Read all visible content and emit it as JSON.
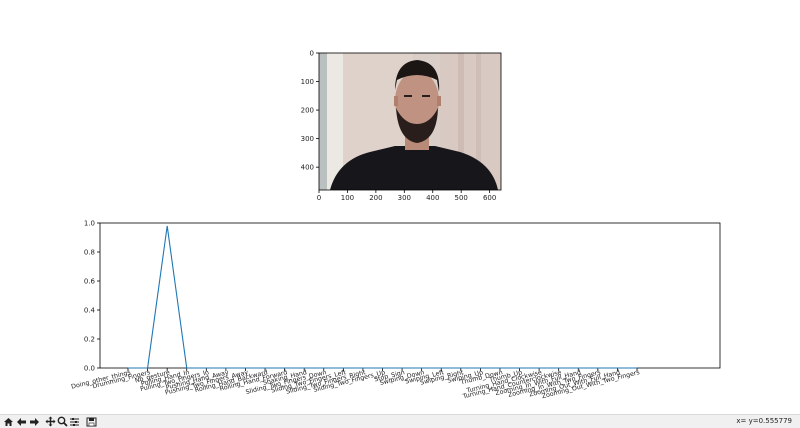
{
  "toolbar": {
    "buttons": [
      {
        "name": "home-icon"
      },
      {
        "name": "back-icon"
      },
      {
        "name": "forward-icon"
      },
      {
        "name": "pan-icon"
      },
      {
        "name": "zoom-icon"
      },
      {
        "name": "configure-subplots-icon"
      },
      {
        "name": "save-icon"
      }
    ],
    "coords_text": "x= y=0.555779"
  },
  "image_axes": {
    "xticks": [
      "0",
      "100",
      "200",
      "300",
      "400",
      "500",
      "600"
    ],
    "yticks": [
      "0",
      "100",
      "200",
      "300",
      "400"
    ],
    "xlim": [
      0,
      640
    ],
    "ylim": [
      480,
      0
    ]
  },
  "chart_data": {
    "type": "line",
    "title": "",
    "xlabel": "",
    "ylabel": "",
    "ylim": [
      0,
      1.0
    ],
    "yticks": [
      "0.0",
      "0.2",
      "0.4",
      "0.6",
      "0.8",
      "1.0"
    ],
    "grid": false,
    "line_color": "#1f77b4",
    "categories": [
      "Doing_other_things",
      "Drumming_Fingers",
      "No_gesture",
      "Pulling_Hand_In",
      "Pulling_Two_Fingers_In",
      "Pushing_Hand_Away",
      "Pushing_Two_Fingers_Away",
      "Rolling_Hand_Backward",
      "Rolling_Hand_Forward",
      "Shaking_Hand",
      "Sliding_Two_Fingers_Down",
      "Sliding_Two_Fingers_Left",
      "Sliding_Two_Fingers_Right",
      "Sliding_Two_Fingers_Up",
      "Stop_Sign",
      "Swiping_Down",
      "Swiping_Left",
      "Swiping_Right",
      "Swiping_Up",
      "Thumb_Down",
      "Thumb_Up",
      "Turning_Hand_Clockwise",
      "Turning_Hand_Counterclockwise",
      "Zooming_In_With_Full_Hand",
      "Zooming_In_With_Two_Fingers",
      "Zooming_Out_With_Full_Hand",
      "Zooming_Out_With_Two_Fingers"
    ],
    "values": [
      0.0,
      0.0,
      0.98,
      0.0,
      0.0,
      0.0,
      0.0,
      0.0,
      0.0,
      0.0,
      0.0,
      0.0,
      0.0,
      0.0,
      0.0,
      0.0,
      0.0,
      0.0,
      0.0,
      0.0,
      0.0,
      0.0,
      0.0,
      0.0,
      0.0,
      0.0,
      0.0
    ]
  }
}
